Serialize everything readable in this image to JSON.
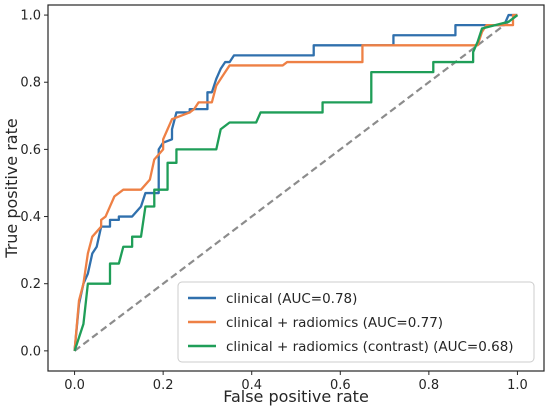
{
  "chart_data": {
    "type": "line",
    "title": "",
    "xlabel": "False positive rate",
    "ylabel": "True positive rate",
    "xlim": [
      -0.06,
      1.06
    ],
    "ylim": [
      -0.06,
      1.03
    ],
    "xticks": [
      "0.0",
      "0.2",
      "0.4",
      "0.6",
      "0.8",
      "1.0"
    ],
    "yticks": [
      "0.0",
      "0.2",
      "0.4",
      "0.6",
      "0.8",
      "1.0"
    ],
    "xtick_values": [
      0,
      0.2,
      0.4,
      0.6,
      0.8,
      1.0
    ],
    "ytick_values": [
      0,
      0.2,
      0.4,
      0.6,
      0.8,
      1.0
    ],
    "grid": false,
    "legend_position": "lower-right",
    "series": [
      {
        "name": "clinical (AUC=0.78)",
        "color": "#3070ad",
        "points": [
          [
            0,
            0
          ],
          [
            0.01,
            0.14
          ],
          [
            0.02,
            0.2
          ],
          [
            0.03,
            0.23
          ],
          [
            0.04,
            0.29
          ],
          [
            0.05,
            0.31
          ],
          [
            0.06,
            0.37
          ],
          [
            0.08,
            0.37
          ],
          [
            0.08,
            0.39
          ],
          [
            0.1,
            0.39
          ],
          [
            0.1,
            0.4
          ],
          [
            0.13,
            0.4
          ],
          [
            0.15,
            0.43
          ],
          [
            0.16,
            0.47
          ],
          [
            0.19,
            0.47
          ],
          [
            0.19,
            0.6
          ],
          [
            0.2,
            0.62
          ],
          [
            0.22,
            0.63
          ],
          [
            0.22,
            0.66
          ],
          [
            0.23,
            0.71
          ],
          [
            0.26,
            0.71
          ],
          [
            0.26,
            0.72
          ],
          [
            0.3,
            0.72
          ],
          [
            0.3,
            0.77
          ],
          [
            0.31,
            0.77
          ],
          [
            0.32,
            0.81
          ],
          [
            0.33,
            0.84
          ],
          [
            0.34,
            0.86
          ],
          [
            0.35,
            0.86
          ],
          [
            0.36,
            0.88
          ],
          [
            0.54,
            0.88
          ],
          [
            0.54,
            0.91
          ],
          [
            0.72,
            0.91
          ],
          [
            0.72,
            0.94
          ],
          [
            0.86,
            0.94
          ],
          [
            0.86,
            0.97
          ],
          [
            0.97,
            0.97
          ],
          [
            0.98,
            1.0
          ],
          [
            1,
            1
          ]
        ]
      },
      {
        "name": "clinical + radiomics (AUC=0.77)",
        "color": "#ee8045",
        "points": [
          [
            0,
            0
          ],
          [
            0.01,
            0.15
          ],
          [
            0.02,
            0.2
          ],
          [
            0.03,
            0.29
          ],
          [
            0.04,
            0.34
          ],
          [
            0.06,
            0.37
          ],
          [
            0.06,
            0.39
          ],
          [
            0.07,
            0.4
          ],
          [
            0.08,
            0.43
          ],
          [
            0.09,
            0.46
          ],
          [
            0.1,
            0.47
          ],
          [
            0.11,
            0.48
          ],
          [
            0.15,
            0.48
          ],
          [
            0.17,
            0.51
          ],
          [
            0.18,
            0.57
          ],
          [
            0.2,
            0.6
          ],
          [
            0.2,
            0.63
          ],
          [
            0.21,
            0.66
          ],
          [
            0.22,
            0.69
          ],
          [
            0.24,
            0.7
          ],
          [
            0.26,
            0.71
          ],
          [
            0.27,
            0.72
          ],
          [
            0.28,
            0.74
          ],
          [
            0.31,
            0.74
          ],
          [
            0.32,
            0.79
          ],
          [
            0.33,
            0.81
          ],
          [
            0.34,
            0.83
          ],
          [
            0.35,
            0.85
          ],
          [
            0.47,
            0.85
          ],
          [
            0.48,
            0.86
          ],
          [
            0.65,
            0.86
          ],
          [
            0.65,
            0.91
          ],
          [
            0.91,
            0.91
          ],
          [
            0.92,
            0.95
          ],
          [
            0.93,
            0.97
          ],
          [
            0.99,
            0.97
          ],
          [
            0.99,
            1.0
          ],
          [
            1,
            1
          ]
        ]
      },
      {
        "name": "clinical + radiomics (contrast) (AUC=0.68)",
        "color": "#1f9e58",
        "points": [
          [
            0,
            0
          ],
          [
            0.02,
            0.08
          ],
          [
            0.03,
            0.2
          ],
          [
            0.08,
            0.2
          ],
          [
            0.08,
            0.26
          ],
          [
            0.1,
            0.26
          ],
          [
            0.11,
            0.31
          ],
          [
            0.13,
            0.31
          ],
          [
            0.13,
            0.34
          ],
          [
            0.15,
            0.34
          ],
          [
            0.16,
            0.43
          ],
          [
            0.18,
            0.43
          ],
          [
            0.18,
            0.48
          ],
          [
            0.21,
            0.48
          ],
          [
            0.21,
            0.56
          ],
          [
            0.23,
            0.56
          ],
          [
            0.23,
            0.6
          ],
          [
            0.32,
            0.6
          ],
          [
            0.33,
            0.66
          ],
          [
            0.35,
            0.68
          ],
          [
            0.41,
            0.68
          ],
          [
            0.42,
            0.71
          ],
          [
            0.56,
            0.71
          ],
          [
            0.56,
            0.74
          ],
          [
            0.67,
            0.74
          ],
          [
            0.67,
            0.83
          ],
          [
            0.81,
            0.83
          ],
          [
            0.81,
            0.86
          ],
          [
            0.9,
            0.86
          ],
          [
            0.9,
            0.89
          ],
          [
            0.91,
            0.92
          ],
          [
            0.92,
            0.96
          ],
          [
            0.98,
            0.98
          ],
          [
            1,
            1
          ]
        ]
      }
    ],
    "reference_line": {
      "points": [
        [
          0,
          0
        ],
        [
          1,
          1
        ]
      ],
      "color": "#8c8c8c",
      "style": "dashed"
    }
  }
}
